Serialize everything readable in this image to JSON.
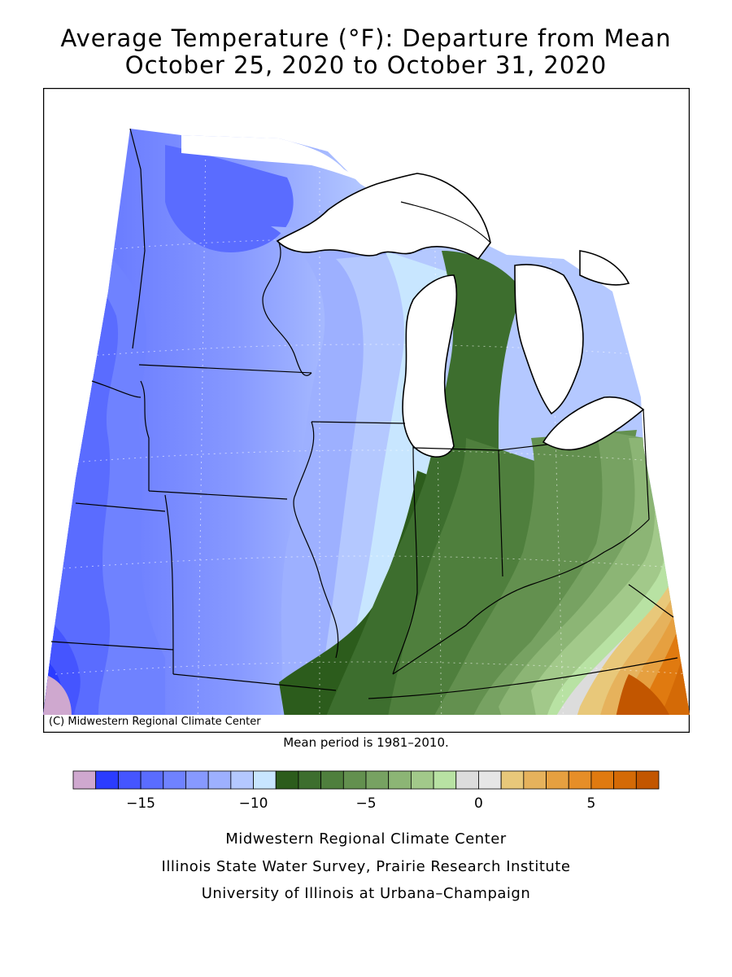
{
  "title": {
    "line1": "Average Temperature (°F): Departure from Mean",
    "line2": "October 25, 2020 to October 31, 2020"
  },
  "map": {
    "credit": "(C) Midwestern Regional Climate Center",
    "regions": [
      "Minnesota",
      "Iowa",
      "Missouri",
      "Wisconsin",
      "Illinois",
      "Michigan",
      "Indiana",
      "Ohio",
      "Kentucky"
    ],
    "colors": {
      "lakes": "#ffffff",
      "border": "#000000",
      "coldest": "#2b3cff",
      "warmest": "#c85a00"
    }
  },
  "mean_note": "Mean period is 1981–2010.",
  "legend": {
    "tick_labels": [
      "−15",
      "−10",
      "−5",
      "0",
      "5"
    ],
    "tick_values": [
      -15,
      -10,
      -5,
      0,
      5
    ],
    "bins": [
      {
        "from": -18,
        "to": -17,
        "color": "#cfa8cf"
      },
      {
        "from": -17,
        "to": -16,
        "color": "#2b3cff"
      },
      {
        "from": -16,
        "to": -15,
        "color": "#4555ff"
      },
      {
        "from": -15,
        "to": -14,
        "color": "#5a6cff"
      },
      {
        "from": -14,
        "to": -13,
        "color": "#6f82ff"
      },
      {
        "from": -13,
        "to": -12,
        "color": "#8799ff"
      },
      {
        "from": -12,
        "to": -11,
        "color": "#9db0ff"
      },
      {
        "from": -11,
        "to": -10,
        "color": "#b4c8ff"
      },
      {
        "from": -10,
        "to": -9,
        "color": "#c8e6ff"
      },
      {
        "from": -9,
        "to": -8,
        "color": "#2c5c1c"
      },
      {
        "from": -8,
        "to": -7,
        "color": "#3d6e2e"
      },
      {
        "from": -7,
        "to": -6,
        "color": "#4f7f3d"
      },
      {
        "from": -6,
        "to": -5,
        "color": "#63904f"
      },
      {
        "from": -5,
        "to": -4,
        "color": "#77a262"
      },
      {
        "from": -4,
        "to": -3,
        "color": "#8cb575"
      },
      {
        "from": -3,
        "to": -2,
        "color": "#a2c98a"
      },
      {
        "from": -2,
        "to": -1,
        "color": "#b8e2a3"
      },
      {
        "from": -1,
        "to": 0,
        "color": "#dcdcdc"
      },
      {
        "from": 0,
        "to": 1,
        "color": "#e6e6e6"
      },
      {
        "from": 1,
        "to": 2,
        "color": "#e8c87a"
      },
      {
        "from": 2,
        "to": 3,
        "color": "#e6b25c"
      },
      {
        "from": 3,
        "to": 4,
        "color": "#e6a040"
      },
      {
        "from": 4,
        "to": 5,
        "color": "#e68e28"
      },
      {
        "from": 5,
        "to": 6,
        "color": "#e07a10"
      },
      {
        "from": 6,
        "to": 7,
        "color": "#d46a06"
      },
      {
        "from": 7,
        "to": 8,
        "color": "#c25600"
      }
    ]
  },
  "footer": {
    "line1": "Midwestern Regional Climate Center",
    "line2": "Illinois State Water Survey, Prairie Research Institute",
    "line3": "University of Illinois at Urbana–Champaign"
  }
}
